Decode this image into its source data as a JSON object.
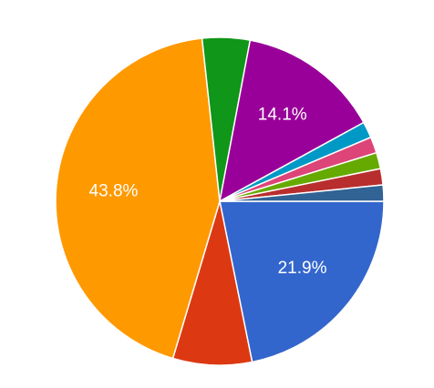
{
  "chart_data": {
    "type": "pie",
    "values": [
      21.9,
      7.8,
      43.8,
      4.7,
      14.1,
      1.6,
      1.6,
      1.6,
      1.6,
      1.6
    ],
    "value_labels": [
      "21.9%",
      null,
      "43.8%",
      null,
      "14.1%",
      null,
      null,
      null,
      null,
      null
    ],
    "colors": [
      "#3366cc",
      "#dc3912",
      "#ff9900",
      "#109618",
      "#990099",
      "#0099c6",
      "#dd4477",
      "#66aa00",
      "#b82e2e",
      "#316395"
    ]
  }
}
